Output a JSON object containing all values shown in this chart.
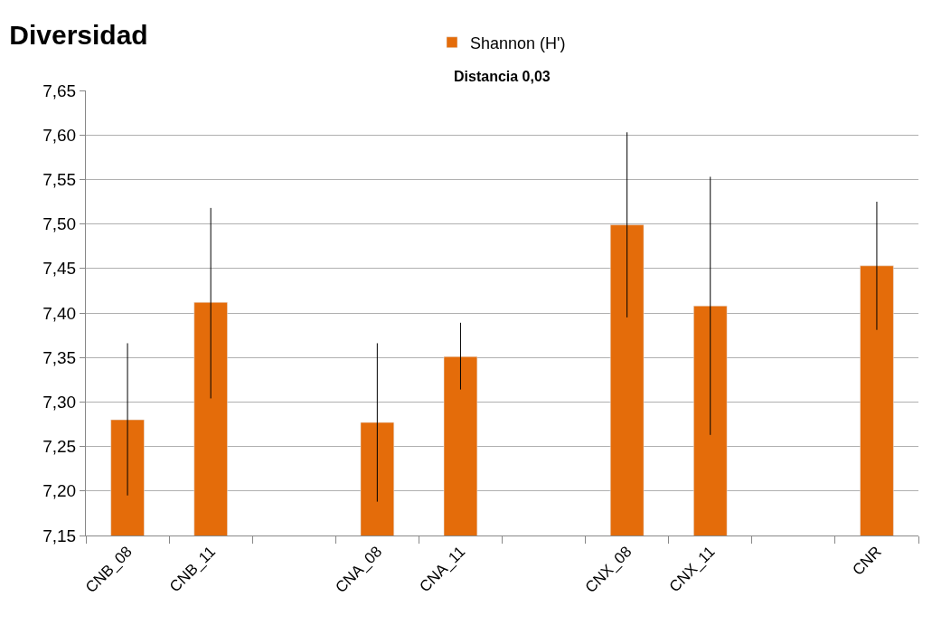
{
  "chart_data": {
    "type": "bar",
    "title": "Diversidad",
    "subtitle": "Distancia 0,03",
    "categories": [
      "CNB_08",
      "CNB_11",
      null,
      "CNA_08",
      "CNA_11",
      null,
      "CNX_08",
      "CNX_11",
      null,
      "CNR"
    ],
    "series": [
      {
        "name": "Shannon (H')",
        "color": "#e46c0a",
        "values": [
          7.28,
          7.412,
          null,
          7.277,
          7.351,
          null,
          7.499,
          7.408,
          null,
          7.453
        ],
        "errors": [
          [
            7.195,
            7.366
          ],
          [
            7.304,
            7.518
          ],
          null,
          [
            7.188,
            7.366
          ],
          [
            7.314,
            7.389
          ],
          null,
          [
            7.395,
            7.603
          ],
          [
            7.263,
            7.553
          ],
          null,
          [
            7.381,
            7.525
          ]
        ]
      }
    ],
    "ylim": [
      7.15,
      7.65
    ],
    "yticks": [
      {
        "value": 7.15,
        "label": "7,15"
      },
      {
        "value": 7.2,
        "label": "7,20"
      },
      {
        "value": 7.25,
        "label": "7,25"
      },
      {
        "value": 7.3,
        "label": "7,30"
      },
      {
        "value": 7.35,
        "label": "7,35"
      },
      {
        "value": 7.4,
        "label": "7,40"
      },
      {
        "value": 7.45,
        "label": "7,45"
      },
      {
        "value": 7.5,
        "label": "7,50"
      },
      {
        "value": 7.55,
        "label": "7,55"
      },
      {
        "value": 7.6,
        "label": "7,60"
      },
      {
        "value": 7.65,
        "label": "7,65"
      }
    ],
    "grid": "y",
    "legend": "top"
  }
}
